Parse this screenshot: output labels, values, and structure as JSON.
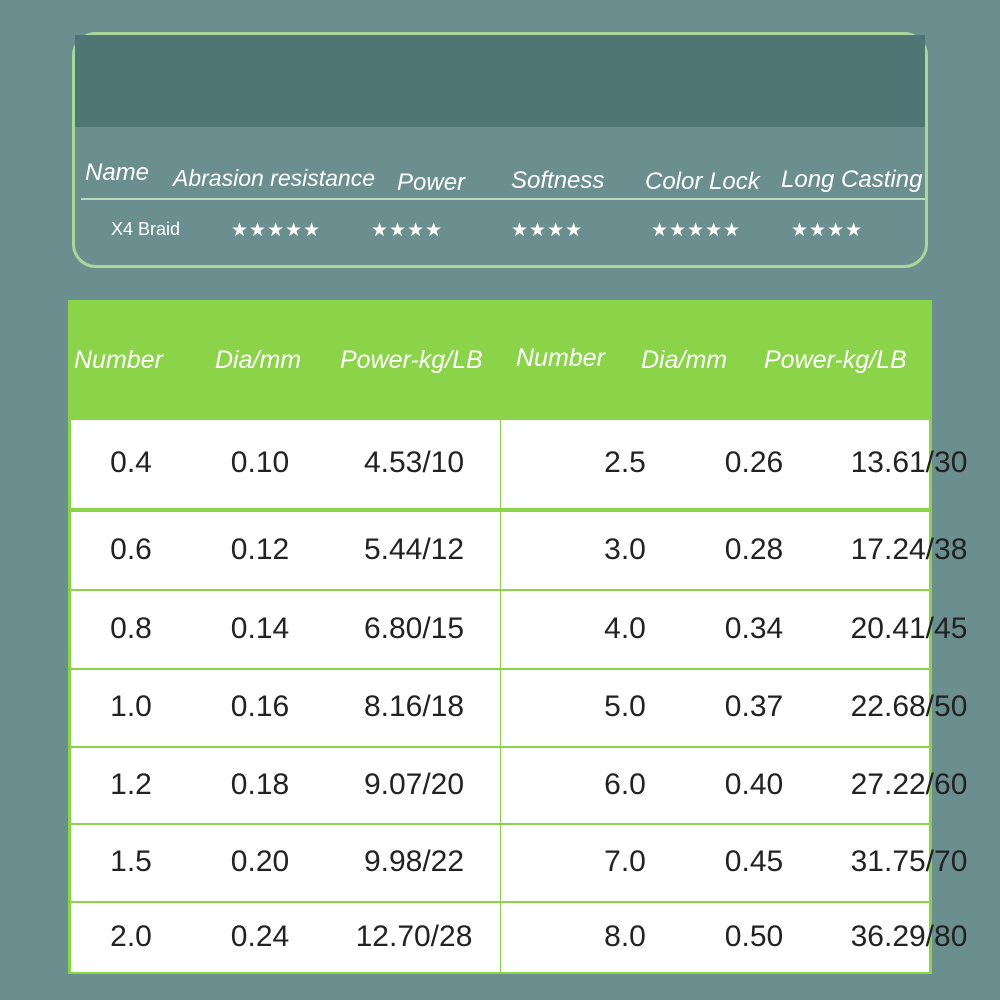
{
  "summary": {
    "headers": [
      "Name",
      "Abrasion resistance",
      "Power",
      "Softness",
      "Color Lock",
      "Long Casting"
    ],
    "name": "X4 Braid",
    "ratings": [
      "★★★★★",
      "★★★★",
      "★★★★",
      "★★★★★",
      "★★★★"
    ]
  },
  "spec_table": {
    "headers": [
      "Number",
      "Dia/mm",
      "Power-kg/LB",
      "Number",
      "Dia/mm",
      "Power-kg/LB"
    ],
    "left_rows": [
      [
        "0.4",
        "0.10",
        "4.53/10"
      ],
      [
        "0.6",
        "0.12",
        "5.44/12"
      ],
      [
        "0.8",
        "0.14",
        "6.80/15"
      ],
      [
        "1.0",
        "0.16",
        "8.16/18"
      ],
      [
        "1.2",
        "0.18",
        "9.07/20"
      ],
      [
        "1.5",
        "0.20",
        "9.98/22"
      ],
      [
        "2.0",
        "0.24",
        "12.70/28"
      ]
    ],
    "right_rows": [
      [
        "2.5",
        "0.26",
        "13.61/30"
      ],
      [
        "3.0",
        "0.28",
        "17.24/38"
      ],
      [
        "4.0",
        "0.34",
        "20.41/45"
      ],
      [
        "5.0",
        "0.37",
        "22.68/50"
      ],
      [
        "6.0",
        "0.40",
        "27.22/60"
      ],
      [
        "7.0",
        "0.45",
        "31.75/70"
      ],
      [
        "8.0",
        "0.50",
        "36.29/80"
      ]
    ]
  },
  "colors": {
    "background": "#6b8f8f",
    "accent_green": "#8bd44a",
    "card_border": "#a9d89a"
  }
}
